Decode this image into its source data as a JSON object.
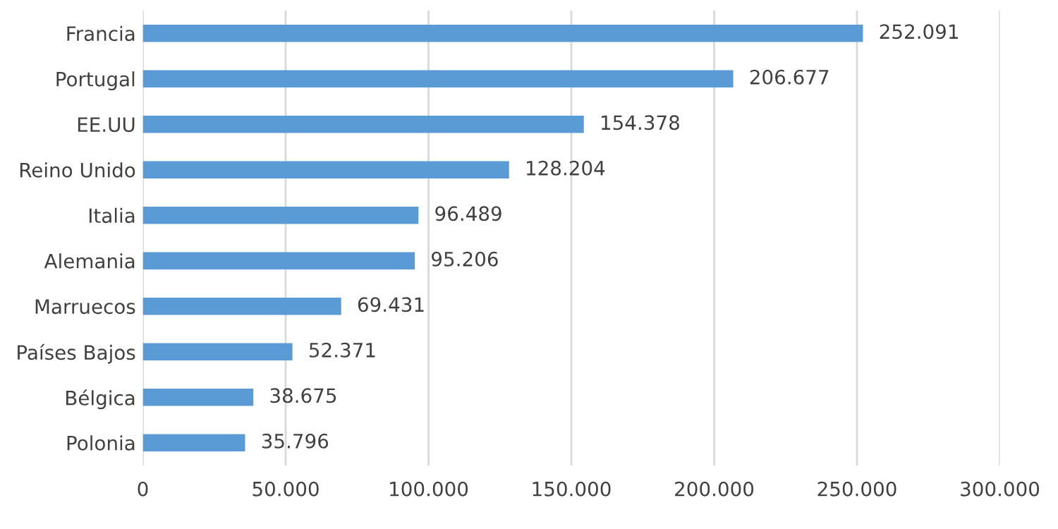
{
  "chart_data": {
    "type": "bar",
    "orientation": "horizontal",
    "categories": [
      "Francia",
      "Portugal",
      "EE.UU",
      "Reino Unido",
      "Italia",
      "Alemania",
      "Marruecos",
      "Países Bajos",
      "Bélgica",
      "Polonia"
    ],
    "values": [
      252091,
      206677,
      154378,
      128204,
      96489,
      95206,
      69431,
      52371,
      38675,
      35796
    ],
    "value_labels": [
      "252.091",
      "206.677",
      "154.378",
      "128.204",
      "96.489",
      "95.206",
      "69.431",
      "52.371",
      "38.675",
      "35.796"
    ],
    "color": "#5b9bd5",
    "xlim": [
      0,
      300000
    ],
    "xticks": [
      0,
      {
        "value": 50000,
        "label": "50.000"
      },
      {
        "value": 100000,
        "label": "100.000"
      },
      {
        "value": 150000,
        "label": "150.000"
      },
      {
        "value": 200000,
        "label": "200.000"
      },
      {
        "value": 250000,
        "label": "250.000"
      },
      {
        "value": 300000,
        "label": "300.000"
      }
    ],
    "grid": "x"
  }
}
